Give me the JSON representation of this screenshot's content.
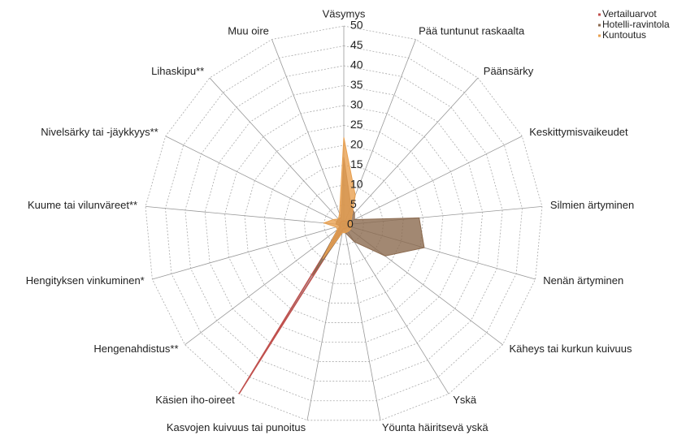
{
  "chart_data": {
    "type": "radar",
    "categories": [
      "Väsymys",
      "Pää tuntunut raskaalta",
      "Päänsärky",
      "Keskittymisvaikeudet",
      "Silmien ärtyminen",
      "Nenän ärtyminen",
      "Käheys tai kurkun kuivuus",
      "Yskä",
      "Yöunta häiritsevä yskä",
      "Kasvojen kuivuus tai punoitus",
      "Käsien iho-oireet",
      "Hengenahdistus**",
      "Hengityksen vinkuminen*",
      "Kuume tai vilunväreet**",
      "Nivelsärky tai -jäykkyys**",
      "Lihaskipu**",
      "Muu oire"
    ],
    "series": [
      {
        "name": "Vertailuarvot",
        "color": "#c0504d",
        "values": [
          1,
          1,
          1,
          1,
          1,
          1,
          1,
          1,
          1,
          1,
          50,
          1,
          1,
          1,
          1,
          1,
          1
        ]
      },
      {
        "name": "Hotelli-ravintola",
        "color": "#8b6a4f",
        "values": [
          17,
          5,
          4,
          3,
          19,
          21,
          13,
          5,
          2,
          2,
          15,
          2,
          1,
          2,
          2,
          2,
          2
        ]
      },
      {
        "name": "Kuntoutus",
        "color": "#e8a050",
        "values": [
          22,
          8,
          3,
          2,
          2,
          2,
          2,
          2,
          2,
          2,
          10,
          2,
          2,
          5,
          3,
          2,
          3
        ]
      }
    ],
    "ylim": [
      0,
      50
    ],
    "yticks": [
      0,
      5,
      10,
      15,
      20,
      25,
      30,
      35,
      40,
      45,
      50
    ],
    "grid": true,
    "legend": "top-right"
  }
}
